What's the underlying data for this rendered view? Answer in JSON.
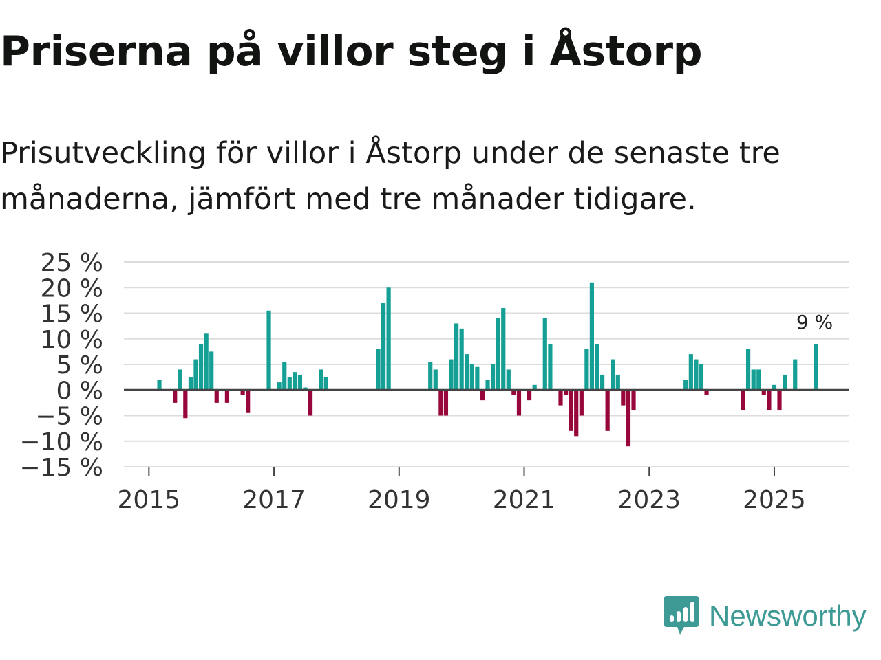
{
  "title": "Priserna på villor steg i Åstorp",
  "subtitle": "Prisutveckling för villor i Åstorp under de senaste tre månaderna, jämfört med tre månader tidigare.",
  "brand": {
    "name": "Newsworthy",
    "color": "#3e9a94",
    "icon": "newsworthy-logo-icon"
  },
  "colors": {
    "positive": "#16a095",
    "negative": "#98073b",
    "grid": "#dddddd",
    "zero": "#444444"
  },
  "chart_data": {
    "type": "bar",
    "title": "Priserna på villor steg i Åstorp",
    "xlabel": "",
    "ylabel": "",
    "ylim": [
      -15,
      25
    ],
    "xlim": [
      2014.6,
      2026.2
    ],
    "grid": true,
    "y_ticks": [
      -15,
      -10,
      -5,
      0,
      5,
      10,
      15,
      20,
      25
    ],
    "y_tick_labels": [
      "−15 %",
      "−10 %",
      "−5 %",
      "0 %",
      "5 %",
      "10 %",
      "15 %",
      "20 %",
      "25 %"
    ],
    "x_ticks": [
      2015,
      2017,
      2019,
      2021,
      2023,
      2025
    ],
    "x_tick_labels": [
      "2015",
      "2017",
      "2019",
      "2021",
      "2023",
      "2025"
    ],
    "last_value_label": "9 %",
    "x": [
      2015.167,
      2015.417,
      2015.5,
      2015.583,
      2015.667,
      2015.75,
      2015.833,
      2015.917,
      2016.0,
      2016.083,
      2016.25,
      2016.5,
      2016.583,
      2016.917,
      2017.083,
      2017.167,
      2017.25,
      2017.333,
      2017.417,
      2017.5,
      2017.583,
      2017.75,
      2017.833,
      2018.667,
      2018.75,
      2018.833,
      2019.5,
      2019.583,
      2019.667,
      2019.75,
      2019.833,
      2019.917,
      2020.0,
      2020.083,
      2020.167,
      2020.25,
      2020.333,
      2020.417,
      2020.5,
      2020.583,
      2020.667,
      2020.75,
      2020.833,
      2020.917,
      2021.083,
      2021.167,
      2021.333,
      2021.417,
      2021.583,
      2021.667,
      2021.75,
      2021.833,
      2021.917,
      2022.0,
      2022.083,
      2022.167,
      2022.25,
      2022.333,
      2022.417,
      2022.5,
      2022.583,
      2022.667,
      2022.75,
      2023.583,
      2023.667,
      2023.75,
      2023.833,
      2023.917,
      2024.5,
      2024.583,
      2024.667,
      2024.75,
      2024.833,
      2024.917,
      2025.0,
      2025.083,
      2025.167,
      2025.333,
      2025.667
    ],
    "values": [
      2,
      -2.5,
      4,
      -5.5,
      2.5,
      6,
      9,
      11,
      7.5,
      -2.5,
      -2.5,
      -1,
      -4.5,
      15.5,
      1.5,
      5.5,
      2.5,
      3.5,
      3,
      0.5,
      -5,
      4,
      2.5,
      8,
      17,
      20,
      5.5,
      4,
      -5,
      -5,
      6,
      13,
      12,
      7,
      5,
      4.5,
      -2,
      2,
      5,
      14,
      16,
      4,
      -1,
      -5,
      -2,
      1,
      14,
      9,
      -3,
      -1,
      -8,
      -9,
      -5,
      8,
      21,
      9,
      3,
      -8,
      6,
      3,
      -3,
      -11,
      -4,
      2,
      7,
      6,
      5,
      -1,
      -4,
      8,
      4,
      4,
      -1,
      -4,
      1,
      -4,
      3,
      6,
      9
    ]
  }
}
